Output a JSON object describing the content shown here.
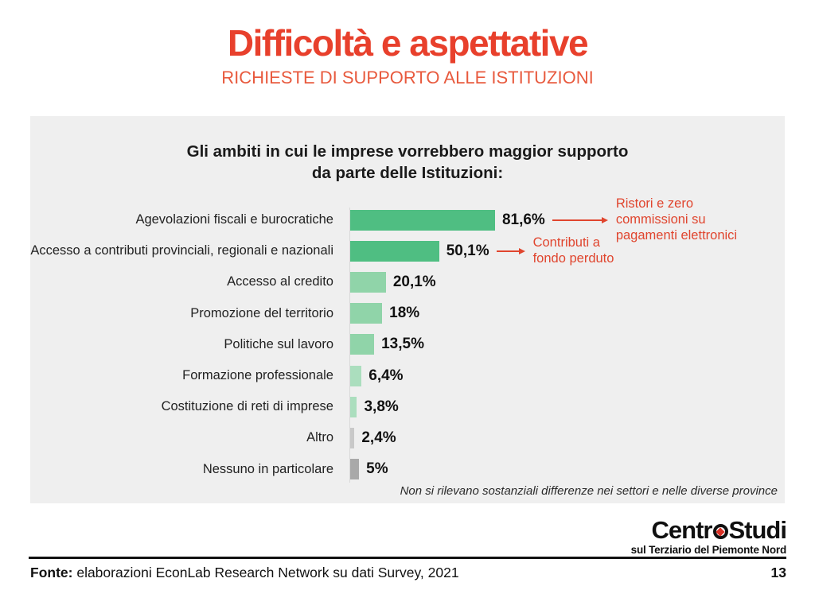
{
  "header": {
    "title": "Difficoltà e aspettative",
    "subtitle": "RICHIESTE DI SUPPORTO ALLE ISTITUZIONI"
  },
  "panel": {
    "chart_title_line1": "Gli ambiti in cui le imprese vorrebbero maggior supporto",
    "chart_title_line2": "da parte delle Istituzioni:",
    "note": "Non si rilevano sostanziali differenze nei settori e nelle diverse province"
  },
  "chart_data": {
    "type": "bar",
    "orientation": "horizontal",
    "title": "Gli ambiti in cui le imprese vorrebbero maggior supporto da parte delle Istituzioni:",
    "categories": [
      "Agevolazioni fiscali e burocratiche",
      "Accesso a contributi provinciali, regionali e nazionali",
      "Accesso al credito",
      "Promozione del territorio",
      "Politiche sul lavoro",
      "Formazione professionale",
      "Costituzione di reti di imprese",
      "Altro",
      "Nessuno in particolare"
    ],
    "values": [
      81.6,
      50.1,
      20.1,
      18,
      13.5,
      6.4,
      3.8,
      2.4,
      5
    ],
    "value_labels": [
      "81,6%",
      "50,1%",
      "20,1%",
      "18%",
      "13,5%",
      "6,4%",
      "3,8%",
      "2,4%",
      "5%"
    ],
    "bar_colors": [
      "#4fbe82",
      "#4fbe82",
      "#90d4a9",
      "#90d4a9",
      "#90d4a9",
      "#abdebe",
      "#abdebe",
      "#c9c9c9",
      "#a9a9a9"
    ],
    "xlim": [
      0,
      100
    ],
    "grid": false,
    "legend": false,
    "annotations": [
      {
        "target_index": 0,
        "text": "Ristori e zero commissioni su pagamenti elettronici",
        "color": "#e0452e"
      },
      {
        "target_index": 1,
        "text": "Contributi a fondo perduto",
        "color": "#e0452e"
      }
    ],
    "note": "Non si rilevano sostanziali differenze nei settori e nelle diverse province"
  },
  "logo": {
    "part1": "Centr",
    "part2": "Studi",
    "tagline": "sul Terziario del Piemonte Nord"
  },
  "footer": {
    "source_label": "Fonte:",
    "source_text": " elaborazioni EconLab Research Network su dati Survey, 2021",
    "page_number": "13"
  },
  "colors": {
    "accent_red": "#e8402c",
    "subtitle_red": "#e85a3e",
    "annotation_red": "#e0452e",
    "bar_green_dark": "#4fbe82",
    "bar_green_mid": "#90d4a9",
    "bar_green_light": "#abdebe",
    "bar_gray_light": "#c9c9c9",
    "bar_gray_dark": "#a9a9a9",
    "panel_bg": "#efefef"
  }
}
